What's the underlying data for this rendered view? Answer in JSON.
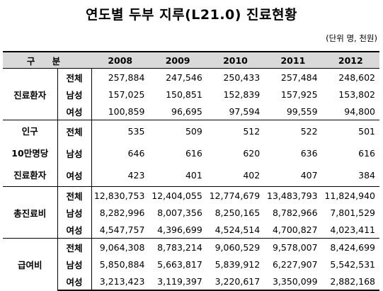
{
  "title": "연도별 두부 지루(L21.0) 진료현황",
  "unit": "(단위 명, 천원)",
  "header": {
    "category": "구 분",
    "years": [
      "2008",
      "2009",
      "2010",
      "2011",
      "2012"
    ]
  },
  "groups": [
    {
      "category_lines": [
        "진료환자"
      ],
      "rows": [
        {
          "label": "전체",
          "values": [
            "257,884",
            "247,546",
            "250,433",
            "257,484",
            "248,602"
          ]
        },
        {
          "label": "남성",
          "values": [
            "157,025",
            "150,851",
            "152,839",
            "157,925",
            "153,802"
          ]
        },
        {
          "label": "여성",
          "values": [
            "100,859",
            "96,695",
            "97,594",
            "99,559",
            "94,800"
          ]
        }
      ]
    },
    {
      "category_lines": [
        "인구",
        "10만명당",
        "진료환자"
      ],
      "rows": [
        {
          "label": "전체",
          "values": [
            "535",
            "509",
            "512",
            "522",
            "501"
          ]
        },
        {
          "label": "남성",
          "values": [
            "646",
            "616",
            "620",
            "636",
            "616"
          ]
        },
        {
          "label": "여성",
          "values": [
            "423",
            "401",
            "402",
            "407",
            "384"
          ]
        }
      ]
    },
    {
      "category_lines": [
        "총진료비"
      ],
      "rows": [
        {
          "label": "전체",
          "values": [
            "12,830,753",
            "12,404,055",
            "12,774,679",
            "13,483,793",
            "11,824,940"
          ]
        },
        {
          "label": "남성",
          "values": [
            "8,282,996",
            "8,007,356",
            "8,250,165",
            "8,782,966",
            "7,801,529"
          ]
        },
        {
          "label": "여성",
          "values": [
            "4,547,757",
            "4,396,699",
            "4,524,514",
            "4,700,827",
            "4,023,411"
          ]
        }
      ]
    },
    {
      "category_lines": [
        "급여비"
      ],
      "rows": [
        {
          "label": "전체",
          "values": [
            "9,064,308",
            "8,783,214",
            "9,060,529",
            "9,578,007",
            "8,424,699"
          ]
        },
        {
          "label": "남성",
          "values": [
            "5,850,884",
            "5,663,817",
            "5,839,912",
            "6,227,907",
            "5,542,531"
          ]
        },
        {
          "label": "여성",
          "values": [
            "3,213,423",
            "3,119,397",
            "3,220,617",
            "3,350,099",
            "2,882,168"
          ]
        }
      ]
    }
  ]
}
